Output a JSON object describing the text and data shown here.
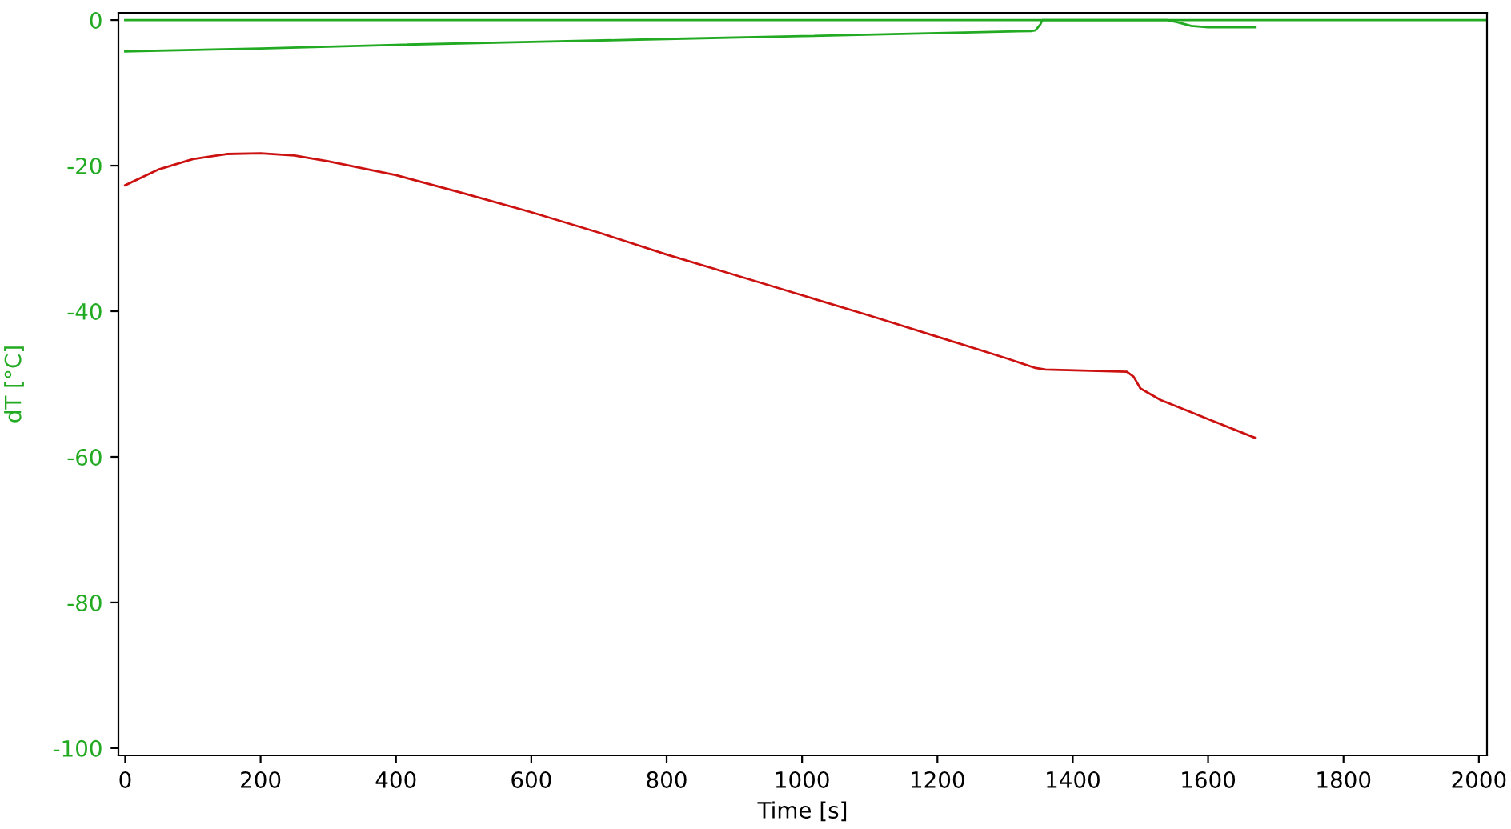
{
  "chart_data": {
    "type": "line",
    "xlabel": "Time [s]",
    "ylabel": "dT [°C]",
    "xlim": [
      -10,
      2012
    ],
    "xticks": [
      0,
      200,
      400,
      600,
      800,
      1000,
      1200,
      1400,
      1600,
      1800,
      2000
    ],
    "ylim": [
      -101,
      1
    ],
    "yticks": [
      0,
      -20,
      -40,
      -60,
      -80,
      -100
    ],
    "grid": false,
    "legend": false,
    "series": [
      {
        "color": "#22aa22",
        "x": [
          0,
          2012
        ],
        "values": [
          0,
          0
        ]
      },
      {
        "color": "#22aa22",
        "x": [
          0,
          200,
          400,
          600,
          800,
          1000,
          1200,
          1340,
          1345,
          1352,
          1355,
          1540,
          1555,
          1575,
          1600,
          1670
        ],
        "values": [
          -4.3,
          -3.9,
          -3.4,
          -3.0,
          -2.6,
          -2.2,
          -1.8,
          -1.5,
          -1.4,
          -0.6,
          0,
          0,
          -0.3,
          -0.8,
          -1.0,
          -1.0
        ]
      },
      {
        "color": "#cc1111",
        "x": [
          0,
          50,
          100,
          150,
          200,
          250,
          300,
          400,
          500,
          600,
          700,
          800,
          900,
          1000,
          1100,
          1200,
          1300,
          1345,
          1360,
          1480,
          1490,
          1500,
          1530,
          1600,
          1670
        ],
        "values": [
          -22.7,
          -20.5,
          -19.1,
          -18.4,
          -18.3,
          -18.6,
          -19.4,
          -21.3,
          -23.8,
          -26.4,
          -29.2,
          -32.2,
          -35.0,
          -37.8,
          -40.6,
          -43.5,
          -46.4,
          -47.8,
          -48.0,
          -48.3,
          -49.0,
          -50.6,
          -52.2,
          -54.8,
          -57.4
        ]
      }
    ]
  }
}
